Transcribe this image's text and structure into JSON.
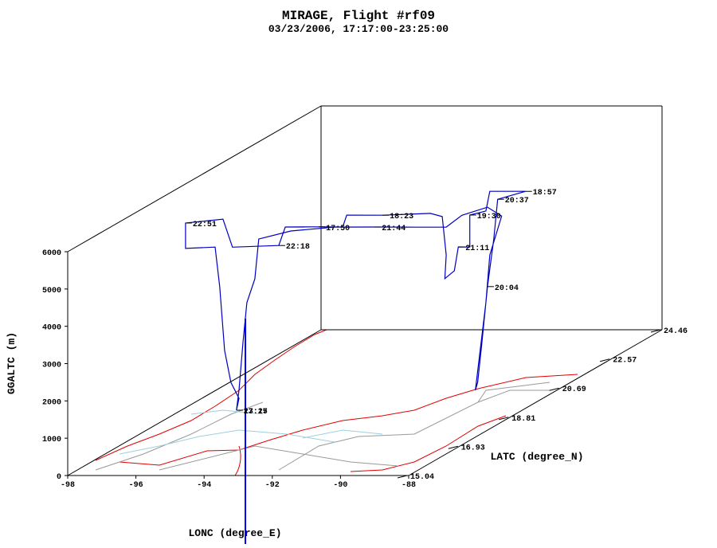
{
  "chart_data": {
    "type": "line3d",
    "title": "MIRAGE, Flight #rf09",
    "subtitle": "03/23/2006, 17:17:00-23:25:00",
    "x_label": "LONC (degree_E)",
    "y_label": "LATC (degree_N)",
    "z_label": "GGALTC (m)",
    "xlim": [
      -98,
      -88
    ],
    "xticks": [
      -98,
      -96,
      -94,
      -92,
      -90,
      -88
    ],
    "ylim": [
      15.04,
      24.46
    ],
    "yticks": [
      15.04,
      16.93,
      18.81,
      20.69,
      22.57,
      24.46
    ],
    "zlim": [
      0,
      6000
    ],
    "zticks": [
      0,
      1000,
      2000,
      3000,
      4000,
      5000,
      6000
    ],
    "track": {
      "color": "#0000c0",
      "lon": [
        -96.38,
        -96.32,
        -96.52,
        -96.68,
        -96.8,
        -96.92,
        -97.66,
        -97.66,
        -96.72,
        -96.48,
        -95.32,
        -95.16,
        -94.32,
        -93.72,
        -93.62,
        -92.72,
        -91.52,
        -91.22,
        -91.12,
        -91.16,
        -90.92,
        -90.82,
        -90.53,
        -90.53,
        -90.13,
        -90.03,
        -89.13,
        -89.83,
        -89.93,
        -90.09,
        -90.23,
        -90.33,
        -90.39,
        -90.13,
        -90.03,
        -89.73,
        -90.09,
        -90.73,
        -91.12,
        -91.92,
        -92.92,
        -93.92,
        -95.02,
        -95.82,
        -95.92,
        -96.12,
        -96.22,
        -96.32,
        -96.38
      ],
      "lat": [
        19.26,
        19.28,
        19.23,
        19.2,
        19.17,
        19.15,
        18.99,
        18.99,
        19.19,
        19.24,
        19.49,
        19.53,
        19.71,
        19.84,
        19.86,
        20.05,
        20.31,
        20.37,
        20.39,
        20.39,
        20.44,
        20.46,
        20.52,
        20.52,
        20.61,
        20.63,
        20.82,
        20.67,
        20.65,
        20.62,
        20.59,
        20.56,
        20.55,
        20.61,
        20.63,
        20.69,
        20.62,
        20.48,
        20.39,
        20.22,
        20.01,
        19.79,
        19.56,
        19.38,
        19.36,
        19.32,
        19.3,
        19.28,
        19.26
      ],
      "alt": [
        0,
        310,
        760,
        1630,
        3350,
        4420,
        4450,
        5130,
        5150,
        4380,
        4320,
        4800,
        4730,
        4670,
        4980,
        4900,
        4840,
        4730,
        3690,
        3060,
        3250,
        3880,
        3850,
        4710,
        4780,
        5300,
        5220,
        5070,
        4010,
        2750,
        1260,
        210,
        0,
        2320,
        3590,
        4610,
        4880,
        4720,
        4440,
        4510,
        4600,
        4690,
        4680,
        4540,
        3480,
        2860,
        1800,
        530,
        0
      ],
      "point_labels": [
        "17:17",
        null,
        null,
        null,
        null,
        null,
        null,
        "22:51",
        null,
        null,
        "22:18",
        null,
        "17:50",
        null,
        null,
        "18:23",
        null,
        null,
        null,
        null,
        null,
        "21:11",
        null,
        "19:30",
        null,
        null,
        "18:57",
        "20:37",
        null,
        "20:04",
        null,
        null,
        null,
        null,
        null,
        null,
        null,
        null,
        null,
        null,
        "21:44",
        null,
        null,
        null,
        null,
        null,
        null,
        null,
        "23:25"
      ]
    }
  }
}
